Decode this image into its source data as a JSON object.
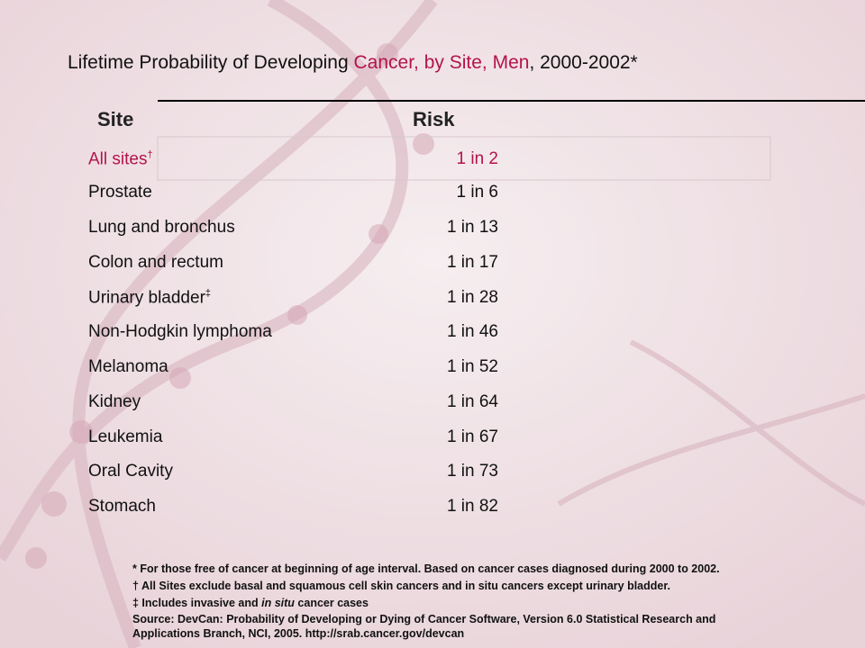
{
  "title": {
    "parts": [
      "Lifetime Probability of Developing ",
      "Cancer, by Site, Men",
      ", 2000-2002*"
    ]
  },
  "table": {
    "header": [
      "Site",
      "Risk"
    ],
    "rows": [
      {
        "site": "All sites",
        "mark": "†",
        "risk": "1 in 2"
      },
      {
        "site": "Prostate",
        "risk": "1 in 6"
      },
      {
        "site": "Lung and bronchus",
        "risk": "1 in 13"
      },
      {
        "site": "Colon and rectum",
        "risk": "1 in 17"
      },
      {
        "site": "Urinary bladder",
        "mark": "‡",
        "risk": "1 in 28"
      },
      {
        "site": "Non-Hodgkin lymphoma",
        "risk": "1 in 46"
      },
      {
        "site": "Melanoma",
        "risk": "1 in 52"
      },
      {
        "site": "Kidney",
        "risk": "1 in 64"
      },
      {
        "site": "Leukemia",
        "risk": "1 in 67"
      },
      {
        "site": "Oral Cavity",
        "risk": "1 in 73"
      },
      {
        "site": "Stomach",
        "risk": "1 in 82"
      }
    ]
  },
  "footnotes": [
    [
      "* For those free of cancer at beginning of age interval. Based on cancer cases diagnosed during 2000 to 2002."
    ],
    [
      "† All Sites exclude basal and squamous cell skin cancers and in situ cancers except urinary bladder."
    ],
    [
      "‡ Includes invasive and ",
      "in situ",
      " cancer cases"
    ]
  ],
  "source": [
    "Source: DevCan: Probability of Developing or Dying of Cancer Software, Version 6.0 Statistical Research and",
    "Applications Branch, NCI, 2005. http://srab.cancer.gov/devcan"
  ]
}
